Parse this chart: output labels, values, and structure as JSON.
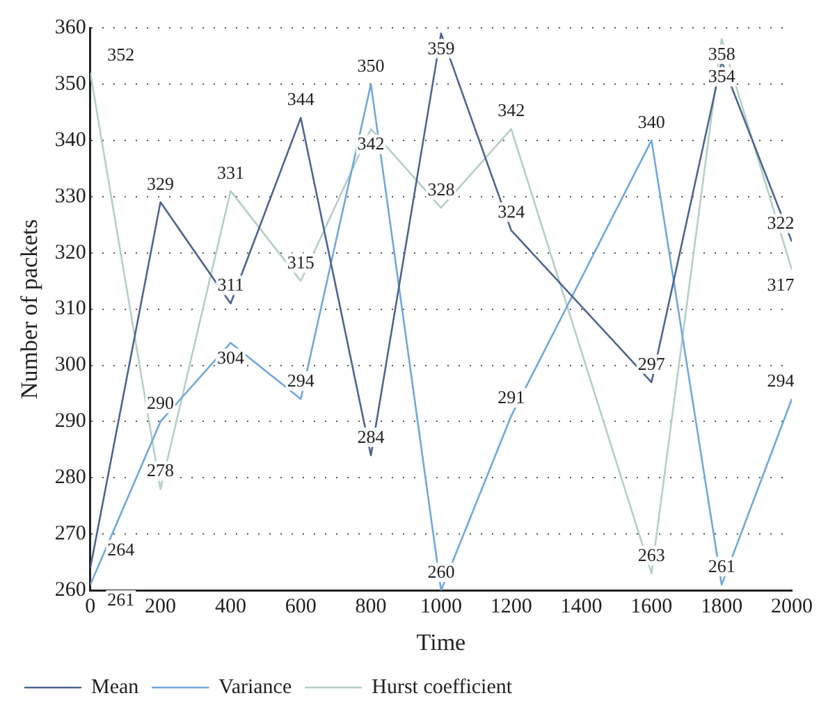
{
  "chart_data": {
    "type": "line",
    "xlabel": "Time",
    "ylabel": "Number of packets",
    "x": [
      0,
      200,
      400,
      600,
      800,
      1000,
      1200,
      1600,
      1800,
      2000
    ],
    "series": [
      {
        "name": "Mean",
        "color": "#4d6591",
        "values": [
          264,
          329,
          311,
          344,
          284,
          359,
          324,
          297,
          354,
          322
        ]
      },
      {
        "name": "Variance",
        "color": "#6fa8dc",
        "values": [
          261,
          290,
          304,
          294,
          350,
          260,
          291,
          340,
          261,
          294
        ]
      },
      {
        "name": "Hurst coefficient",
        "color": "#b5cfc6",
        "values": [
          352,
          278,
          331,
          315,
          342,
          328,
          342,
          263,
          358,
          317
        ]
      }
    ],
    "xlim": [
      0,
      2000
    ],
    "xticks": [
      0,
      200,
      400,
      600,
      800,
      1000,
      1200,
      1400,
      1600,
      1800,
      2000
    ],
    "ylim": [
      260,
      360
    ],
    "yticks": [
      260,
      270,
      280,
      290,
      300,
      310,
      320,
      330,
      340,
      350,
      360
    ],
    "grid": "y",
    "legend": "bottom",
    "data_labels": true,
    "marker": "none",
    "line_style": "solid"
  }
}
